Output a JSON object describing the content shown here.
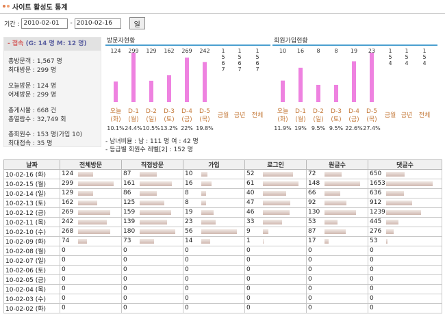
{
  "title": "사이트 활성도 통계",
  "date_range": {
    "label": "기간 :",
    "start": "2010-02-01",
    "separator": "-",
    "end": "2010-02-16",
    "button_label": "일"
  },
  "summary": {
    "heading": "- 접속",
    "heading_detail": "(G: 14 명 M: 12 명)",
    "lines": [
      "총방문객 : 1,567 명",
      "최대방문 : 299 명",
      "오늘방문 : 124 명",
      "어제방문 : 299 명",
      "총게시물 : 668 건",
      "총열람수 : 32,749 회",
      "총회원수 : 153 명(가입 10)",
      "최대접속 : 35 명"
    ]
  },
  "visitor_panel": {
    "title": "방문자현황"
  },
  "signup_panel": {
    "title": "회원가입현황"
  },
  "demographics": {
    "gender": "- 남녀비율 :  남 : 111 명   여 : 42 명",
    "level": "- 등급별 회원수     레벨[2] : 152 명"
  },
  "chart_data": [
    {
      "type": "bar",
      "title": "방문자현황",
      "categories": [
        "오늘(화)",
        "D-1(월)",
        "D-2(일)",
        "D-3(토)",
        "D-4(금)",
        "D-5(목)"
      ],
      "category_lines": [
        [
          "오늘",
          "(화)"
        ],
        [
          "D-1",
          "(월)"
        ],
        [
          "D-2",
          "(일)"
        ],
        [
          "D-3",
          "(토)"
        ],
        [
          "D-4",
          "(금)"
        ],
        [
          "D-5",
          "(목)"
        ]
      ],
      "values": [
        124,
        299,
        129,
        162,
        269,
        242
      ],
      "percentages": [
        "10.1%",
        "24.4%",
        "10.5%",
        "13.2%",
        "22%",
        "19.8%"
      ],
      "extra_categories": [
        "금월",
        "금년",
        "전체"
      ],
      "extra_values": [
        "1567",
        "1567",
        "1567"
      ],
      "bar_color": "#ee82e0"
    },
    {
      "type": "bar",
      "title": "회원가입현황",
      "categories": [
        "오늘(화)",
        "D-1(월)",
        "D-2(일)",
        "D-3(토)",
        "D-4(금)",
        "D-5(목)"
      ],
      "category_lines": [
        [
          "오늘",
          "(화)"
        ],
        [
          "D-1",
          "(월)"
        ],
        [
          "D-2",
          "(일)"
        ],
        [
          "D-3",
          "(토)"
        ],
        [
          "D-4",
          "(금)"
        ],
        [
          "D-5",
          "(목)"
        ]
      ],
      "values": [
        10,
        16,
        8,
        8,
        19,
        23
      ],
      "percentages": [
        "11.9%",
        "19%",
        "9.5%",
        "9.5%",
        "22.6%",
        "27.4%"
      ],
      "extra_categories": [
        "금월",
        "금년",
        "전체"
      ],
      "extra_values": [
        "154",
        "154",
        "154"
      ],
      "bar_color": "#ee82e0"
    }
  ],
  "table": {
    "headers": [
      "날짜",
      "전체방문",
      "직접방문",
      "가입",
      "로그인",
      "원글수",
      "댓글수"
    ],
    "max": [
      299,
      180,
      56,
      61,
      148,
      1653
    ],
    "rows": [
      [
        "10-02-16 (화)",
        124,
        87,
        10,
        52,
        72,
        650
      ],
      [
        "10-02-15 (월)",
        299,
        161,
        16,
        61,
        148,
        1653
      ],
      [
        "10-02-14 (일)",
        129,
        86,
        8,
        40,
        66,
        636
      ],
      [
        "10-02-13 (토)",
        162,
        125,
        8,
        47,
        92,
        912
      ],
      [
        "10-02-12 (금)",
        269,
        159,
        19,
        46,
        130,
        1239
      ],
      [
        "10-02-11 (목)",
        242,
        139,
        23,
        33,
        53,
        445
      ],
      [
        "10-02-10 (수)",
        268,
        180,
        56,
        9,
        87,
        276
      ],
      [
        "10-02-09 (화)",
        74,
        73,
        14,
        1,
        17,
        53
      ],
      [
        "10-02-08 (월)",
        0,
        0,
        0,
        0,
        0,
        0
      ],
      [
        "10-02-07 (일)",
        0,
        0,
        0,
        0,
        0,
        0
      ],
      [
        "10-02-06 (토)",
        0,
        0,
        0,
        0,
        0,
        0
      ],
      [
        "10-02-05 (금)",
        0,
        0,
        0,
        0,
        0,
        0
      ],
      [
        "10-02-04 (목)",
        0,
        0,
        0,
        0,
        0,
        0
      ],
      [
        "10-02-03 (수)",
        0,
        0,
        0,
        0,
        0,
        0
      ],
      [
        "10-02-02 (화)",
        0,
        0,
        0,
        0,
        0,
        0
      ]
    ]
  }
}
